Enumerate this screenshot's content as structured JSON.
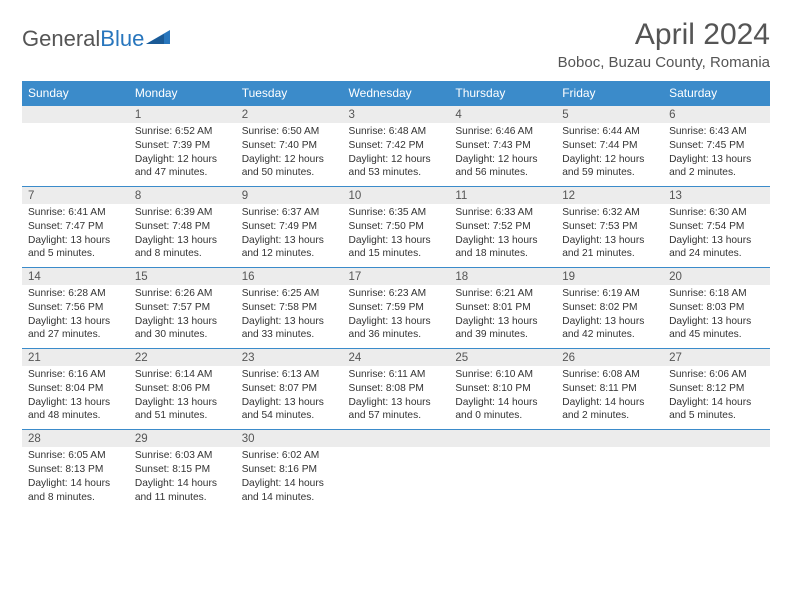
{
  "brand": {
    "text1": "General",
    "text2": "Blue"
  },
  "title": "April 2024",
  "location": "Boboc, Buzau County, Romania",
  "headers": [
    "Sunday",
    "Monday",
    "Tuesday",
    "Wednesday",
    "Thursday",
    "Friday",
    "Saturday"
  ],
  "colors": {
    "header_bg": "#3b8bca",
    "header_text": "#ffffff",
    "daynum_bg": "#ececec",
    "divider": "#3b8bca",
    "text": "#333333",
    "title_text": "#555555"
  },
  "weeks": [
    [
      null,
      {
        "n": "1",
        "sr": "6:52 AM",
        "ss": "7:39 PM",
        "dl": "12 hours and 47 minutes."
      },
      {
        "n": "2",
        "sr": "6:50 AM",
        "ss": "7:40 PM",
        "dl": "12 hours and 50 minutes."
      },
      {
        "n": "3",
        "sr": "6:48 AM",
        "ss": "7:42 PM",
        "dl": "12 hours and 53 minutes."
      },
      {
        "n": "4",
        "sr": "6:46 AM",
        "ss": "7:43 PM",
        "dl": "12 hours and 56 minutes."
      },
      {
        "n": "5",
        "sr": "6:44 AM",
        "ss": "7:44 PM",
        "dl": "12 hours and 59 minutes."
      },
      {
        "n": "6",
        "sr": "6:43 AM",
        "ss": "7:45 PM",
        "dl": "13 hours and 2 minutes."
      }
    ],
    [
      {
        "n": "7",
        "sr": "6:41 AM",
        "ss": "7:47 PM",
        "dl": "13 hours and 5 minutes."
      },
      {
        "n": "8",
        "sr": "6:39 AM",
        "ss": "7:48 PM",
        "dl": "13 hours and 8 minutes."
      },
      {
        "n": "9",
        "sr": "6:37 AM",
        "ss": "7:49 PM",
        "dl": "13 hours and 12 minutes."
      },
      {
        "n": "10",
        "sr": "6:35 AM",
        "ss": "7:50 PM",
        "dl": "13 hours and 15 minutes."
      },
      {
        "n": "11",
        "sr": "6:33 AM",
        "ss": "7:52 PM",
        "dl": "13 hours and 18 minutes."
      },
      {
        "n": "12",
        "sr": "6:32 AM",
        "ss": "7:53 PM",
        "dl": "13 hours and 21 minutes."
      },
      {
        "n": "13",
        "sr": "6:30 AM",
        "ss": "7:54 PM",
        "dl": "13 hours and 24 minutes."
      }
    ],
    [
      {
        "n": "14",
        "sr": "6:28 AM",
        "ss": "7:56 PM",
        "dl": "13 hours and 27 minutes."
      },
      {
        "n": "15",
        "sr": "6:26 AM",
        "ss": "7:57 PM",
        "dl": "13 hours and 30 minutes."
      },
      {
        "n": "16",
        "sr": "6:25 AM",
        "ss": "7:58 PM",
        "dl": "13 hours and 33 minutes."
      },
      {
        "n": "17",
        "sr": "6:23 AM",
        "ss": "7:59 PM",
        "dl": "13 hours and 36 minutes."
      },
      {
        "n": "18",
        "sr": "6:21 AM",
        "ss": "8:01 PM",
        "dl": "13 hours and 39 minutes."
      },
      {
        "n": "19",
        "sr": "6:19 AM",
        "ss": "8:02 PM",
        "dl": "13 hours and 42 minutes."
      },
      {
        "n": "20",
        "sr": "6:18 AM",
        "ss": "8:03 PM",
        "dl": "13 hours and 45 minutes."
      }
    ],
    [
      {
        "n": "21",
        "sr": "6:16 AM",
        "ss": "8:04 PM",
        "dl": "13 hours and 48 minutes."
      },
      {
        "n": "22",
        "sr": "6:14 AM",
        "ss": "8:06 PM",
        "dl": "13 hours and 51 minutes."
      },
      {
        "n": "23",
        "sr": "6:13 AM",
        "ss": "8:07 PM",
        "dl": "13 hours and 54 minutes."
      },
      {
        "n": "24",
        "sr": "6:11 AM",
        "ss": "8:08 PM",
        "dl": "13 hours and 57 minutes."
      },
      {
        "n": "25",
        "sr": "6:10 AM",
        "ss": "8:10 PM",
        "dl": "14 hours and 0 minutes."
      },
      {
        "n": "26",
        "sr": "6:08 AM",
        "ss": "8:11 PM",
        "dl": "14 hours and 2 minutes."
      },
      {
        "n": "27",
        "sr": "6:06 AM",
        "ss": "8:12 PM",
        "dl": "14 hours and 5 minutes."
      }
    ],
    [
      {
        "n": "28",
        "sr": "6:05 AM",
        "ss": "8:13 PM",
        "dl": "14 hours and 8 minutes."
      },
      {
        "n": "29",
        "sr": "6:03 AM",
        "ss": "8:15 PM",
        "dl": "14 hours and 11 minutes."
      },
      {
        "n": "30",
        "sr": "6:02 AM",
        "ss": "8:16 PM",
        "dl": "14 hours and 14 minutes."
      },
      null,
      null,
      null,
      null
    ]
  ]
}
